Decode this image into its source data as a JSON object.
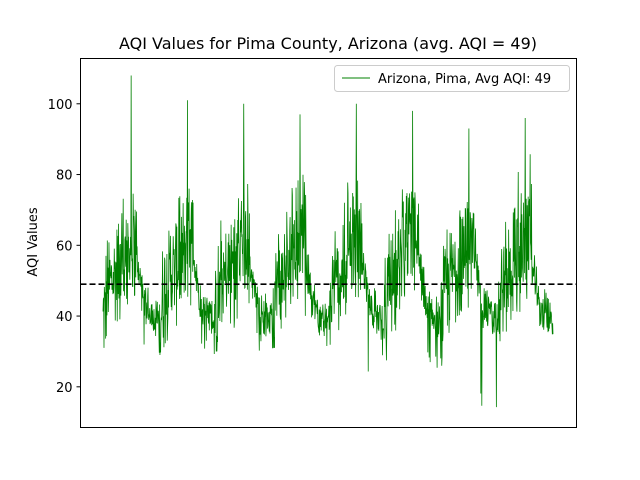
{
  "chart_data": {
    "type": "line",
    "title": "AQI Values for Pima County, Arizona (avg. AQI = 49)",
    "xlabel": "",
    "ylabel": "AQI Values",
    "ylim": [
      8.5,
      112.8
    ],
    "yticks": [
      20,
      40,
      60,
      80,
      100
    ],
    "xticks_visible": false,
    "average_line": {
      "value": 49,
      "style": "dashed",
      "color": "#000000"
    },
    "series": [
      {
        "name": "Arizona, Pima, Avg AQI: 49",
        "color": "#008000",
        "seasons": [
          {
            "start_value": 37,
            "peak": 108,
            "high_fill_top": 80,
            "low_trough": 31
          },
          {
            "start_value": 36,
            "peak": 101,
            "high_fill_top": 78,
            "low_trough": 29
          },
          {
            "start_value": 38,
            "peak": 100,
            "high_fill_top": 80,
            "low_trough": 30
          },
          {
            "start_value": 37,
            "peak": 97,
            "high_fill_top": 80,
            "low_trough": 31
          },
          {
            "start_value": 33,
            "peak": 100,
            "high_fill_top": 80,
            "low_trough": 23
          },
          {
            "start_value": 36,
            "peak": 98,
            "high_fill_top": 76,
            "low_trough": 24
          },
          {
            "start_value": 35,
            "peak": 93,
            "high_fill_top": 72,
            "low_trough": 13
          },
          {
            "start_value": 38,
            "peak": 96,
            "high_fill_top": 86,
            "low_trough": 28
          }
        ]
      }
    ],
    "legend": {
      "position": "top-right",
      "entries": [
        "Arizona, Pima, Avg AQI: 49"
      ]
    }
  }
}
